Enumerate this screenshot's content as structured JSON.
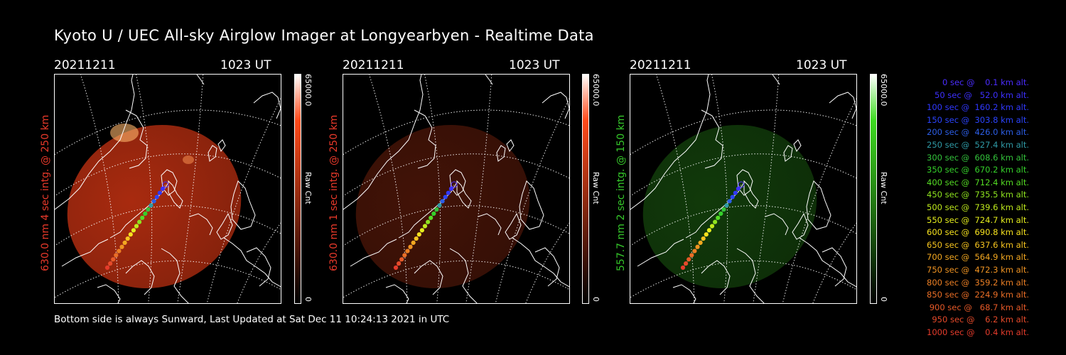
{
  "title": "Kyoto U / UEC All-sky Airglow Imager at Longyearbyen - Realtime Data",
  "panels": [
    {
      "date": "20211211",
      "time": "1023 UT",
      "side_label": "630.0 nm 4 sec intg. @ 250 km",
      "side_color": "#e8392a",
      "cb_max": "65000.0",
      "cb_min": "0",
      "cb_unit": "Raw Cnt",
      "cb_top": "#ff4a1a",
      "image_color": "#c63212",
      "image_opacity": 0.85
    },
    {
      "date": "20211211",
      "time": "1023 UT",
      "side_label": "630.0 nm 1 sec intg. @ 250 km",
      "side_color": "#e8392a",
      "cb_max": "65000.0",
      "cb_min": "0",
      "cb_unit": "Raw Cnt",
      "cb_top": "#ff4a1a",
      "image_color": "#4a1508",
      "image_opacity": 0.9
    },
    {
      "date": "20211211",
      "time": "1023 UT",
      "side_label": "557.7 nm 2 sec intg. @ 150 km",
      "side_color": "#35c82a",
      "cb_max": "65000.0",
      "cb_min": "0",
      "cb_unit": "Raw Cnt",
      "cb_top": "#3ddc20",
      "image_color": "#123d0b",
      "image_opacity": 0.95
    }
  ],
  "footer": "Bottom side is always Sunward, Last Updated at Sat Dec 11 10:24:13 2021 in UTC",
  "legend": [
    {
      "text": "0 sec @    0.1 km alt.",
      "color": "#4b2cff"
    },
    {
      "text": "50 sec @   52.0 km alt.",
      "color": "#3d30ff"
    },
    {
      "text": "100 sec @  160.2 km alt.",
      "color": "#3038ff"
    },
    {
      "text": "150 sec @  303.8 km alt.",
      "color": "#2b44ff"
    },
    {
      "text": "200 sec @  426.0 km alt.",
      "color": "#2c5ee6"
    },
    {
      "text": "250 sec @  527.4 km alt.",
      "color": "#2f9aa6"
    },
    {
      "text": "300 sec @  608.6 km alt.",
      "color": "#33c33b"
    },
    {
      "text": "350 sec @  670.2 km alt.",
      "color": "#35d12a"
    },
    {
      "text": "400 sec @  712.4 km alt.",
      "color": "#55dc24"
    },
    {
      "text": "450 sec @  735.5 km alt.",
      "color": "#8ee31f"
    },
    {
      "text": "500 sec @  739.6 km alt.",
      "color": "#bfea1c"
    },
    {
      "text": "550 sec @  724.7 km alt.",
      "color": "#e5ee1d"
    },
    {
      "text": "600 sec @  690.8 km alt.",
      "color": "#f6e21e"
    },
    {
      "text": "650 sec @  637.6 km alt.",
      "color": "#f6c41f"
    },
    {
      "text": "700 sec @  564.9 km alt.",
      "color": "#f3a820"
    },
    {
      "text": "750 sec @  472.3 km alt.",
      "color": "#ef9322"
    },
    {
      "text": "800 sec @  359.2 km alt.",
      "color": "#ec7f24"
    },
    {
      "text": "850 sec @  224.9 km alt.",
      "color": "#ea6e26"
    },
    {
      "text": "900 sec @   68.7 km alt.",
      "color": "#e85a28"
    },
    {
      "text": "950 sec @    6.2 km alt.",
      "color": "#e64a2a"
    },
    {
      "text": "1000 sec @    0.4 km alt.",
      "color": "#e43b2b"
    }
  ]
}
